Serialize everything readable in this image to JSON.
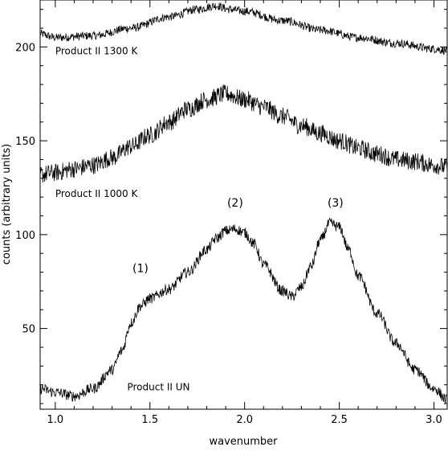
{
  "chart_data": {
    "type": "line",
    "title": "",
    "xlabel": "wavenumber",
    "ylabel": "counts (arbitrary units)",
    "xlim": [
      0.92,
      3.07
    ],
    "ylim": [
      7,
      225
    ],
    "x_ticks": [
      1.0,
      1.5,
      2.0,
      2.5,
      3.0
    ],
    "x_tick_labels": [
      "1.0",
      "1.5",
      "2.0",
      "2.5",
      "3.0"
    ],
    "y_ticks": [
      50,
      100,
      150,
      200
    ],
    "y_tick_labels": [
      "50",
      "100",
      "150",
      "200"
    ],
    "grid": false,
    "legend": "none",
    "line_color": "#000000",
    "series": [
      {
        "name": "Product II 1300 K",
        "noise": 1.4,
        "x": [
          0.92,
          1.0,
          1.2,
          1.4,
          1.6,
          1.75,
          1.85,
          1.92,
          2.0,
          2.2,
          2.4,
          2.6,
          2.8,
          3.0,
          3.07
        ],
        "values": [
          207,
          205,
          206,
          210,
          216,
          220,
          222,
          220,
          219,
          214,
          209,
          205,
          202,
          199,
          198
        ]
      },
      {
        "name": "Product II 1000 K",
        "noise": 3.0,
        "x": [
          0.92,
          1.0,
          1.1,
          1.2,
          1.3,
          1.4,
          1.5,
          1.6,
          1.7,
          1.8,
          1.9,
          2.0,
          2.1,
          2.2,
          2.3,
          2.4,
          2.5,
          2.6,
          2.7,
          2.8,
          2.9,
          3.0,
          3.07
        ],
        "values": [
          132,
          133,
          135,
          137,
          141,
          147,
          153,
          160,
          167,
          172,
          175,
          172,
          168,
          163,
          158,
          154,
          150,
          146,
          143,
          140,
          139,
          137,
          136
        ]
      },
      {
        "name": "Product II UN",
        "noise": 1.8,
        "x": [
          0.92,
          1.0,
          1.1,
          1.2,
          1.3,
          1.35,
          1.4,
          1.45,
          1.5,
          1.6,
          1.7,
          1.8,
          1.85,
          1.9,
          1.95,
          2.0,
          2.05,
          2.1,
          2.2,
          2.25,
          2.3,
          2.35,
          2.4,
          2.45,
          2.5,
          2.55,
          2.6,
          2.7,
          2.8,
          2.9,
          3.0,
          3.07
        ],
        "values": [
          18,
          16,
          14,
          18,
          28,
          38,
          53,
          62,
          66,
          71,
          80,
          92,
          98,
          102,
          103,
          101,
          95,
          84,
          70,
          67,
          72,
          83,
          97,
          106,
          104,
          92,
          78,
          58,
          42,
          28,
          18,
          12
        ]
      }
    ],
    "annotations": [
      {
        "text": "Product II 1300 K",
        "x": 1.0,
        "y": 196
      },
      {
        "text": "Product II 1000 K",
        "x": 1.0,
        "y": 120
      },
      {
        "text": "Product II UN",
        "x": 1.38,
        "y": 17
      },
      {
        "text": "(1)",
        "x": 1.45,
        "y": 80
      },
      {
        "text": "(2)",
        "x": 1.95,
        "y": 115
      },
      {
        "text": "(3)",
        "x": 2.48,
        "y": 115
      }
    ]
  }
}
